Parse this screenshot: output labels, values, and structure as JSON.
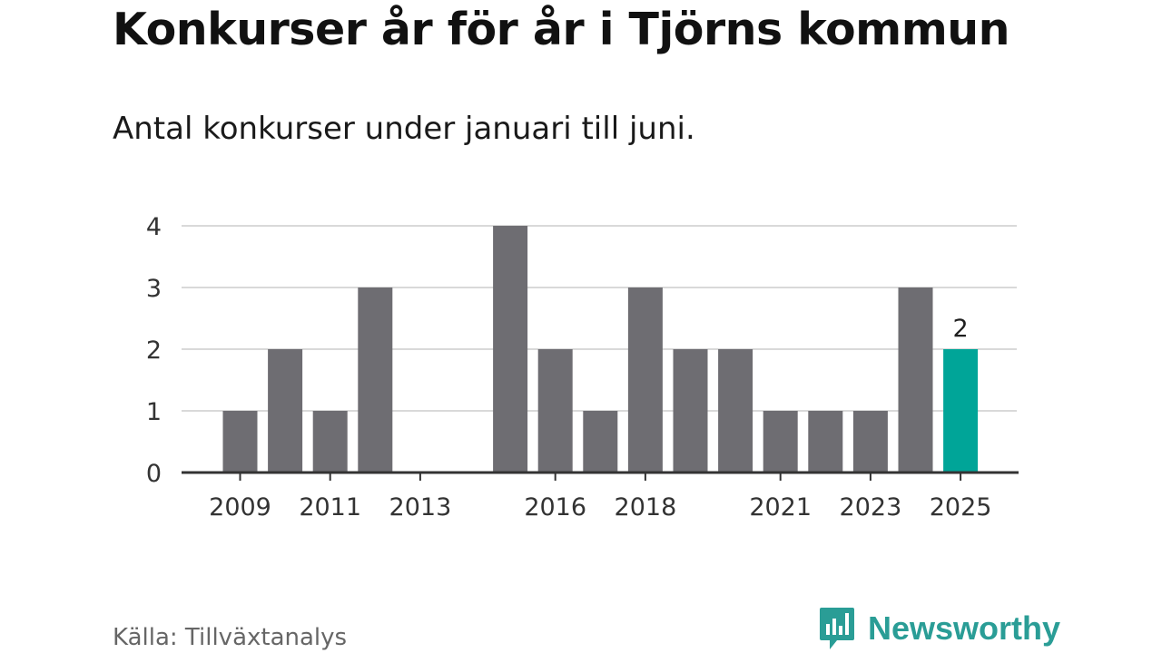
{
  "title": "Konkurser år för år i Tjörns kommun",
  "subtitle": "Antal konkurser under januari till juni.",
  "source": "Källa: Tillväxtanalys",
  "brand": {
    "name": "Newsworthy",
    "icon": "newsworthy-logo-icon",
    "color": "#2a9d96"
  },
  "chart_data": {
    "type": "bar",
    "title": "Konkurser år för år i Tjörns kommun",
    "subtitle": "Antal konkurser under januari till juni.",
    "categories": [
      "2009",
      "2010",
      "2011",
      "2012",
      "2013",
      "2014",
      "2015",
      "2016",
      "2017",
      "2018",
      "2019",
      "2020",
      "2021",
      "2022",
      "2023",
      "2024",
      "2025"
    ],
    "values": [
      1,
      2,
      1,
      3,
      0,
      0,
      4,
      2,
      1,
      3,
      2,
      2,
      1,
      1,
      1,
      3,
      2
    ],
    "x_tick_labels": [
      "2009",
      "2011",
      "2013",
      "2016",
      "2018",
      "2021",
      "2023",
      "2025"
    ],
    "y_ticks": [
      0,
      1,
      2,
      3,
      4
    ],
    "ylim": [
      0,
      4
    ],
    "xlabel": "",
    "ylabel": "",
    "grid": true,
    "colors": {
      "bar": "#6e6d72",
      "highlight": "#00a598",
      "grid": "#d9d9d9",
      "axis": "#333333"
    },
    "highlight_category": "2025",
    "data_labels": [
      {
        "category": "2025",
        "text": "2"
      }
    ]
  }
}
